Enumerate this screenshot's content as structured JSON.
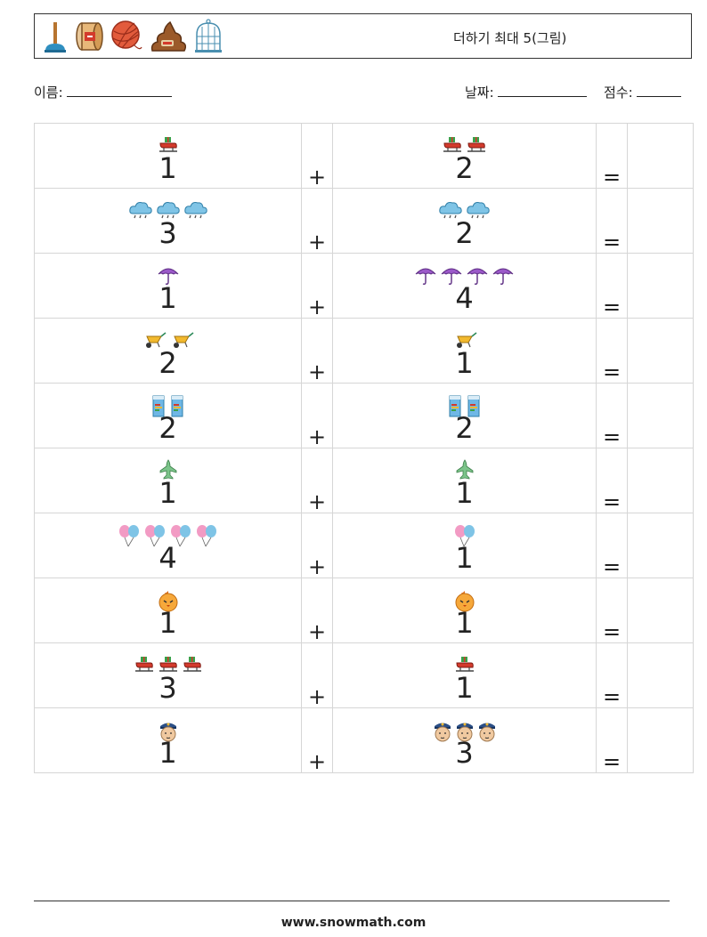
{
  "header": {
    "title": "더하기 최대 5(그림)",
    "icons": [
      "plunger-icon",
      "drum-icon",
      "yarn-ball-icon",
      "poop-icon",
      "birdcage-icon"
    ]
  },
  "meta": {
    "name_label": "이름:",
    "date_label": "날짜:",
    "score_label": "점수:"
  },
  "problems": [
    {
      "a": 1,
      "b": 2,
      "icon": "sleigh-icon",
      "plus": "+",
      "equals": "="
    },
    {
      "a": 3,
      "b": 2,
      "icon": "rain-cloud-icon",
      "plus": "+",
      "equals": "="
    },
    {
      "a": 1,
      "b": 4,
      "icon": "umbrella-icon",
      "plus": "+",
      "equals": "="
    },
    {
      "a": 2,
      "b": 1,
      "icon": "wheelbarrow-icon",
      "plus": "+",
      "equals": "="
    },
    {
      "a": 2,
      "b": 2,
      "icon": "milk-carton-icon",
      "plus": "+",
      "equals": "="
    },
    {
      "a": 1,
      "b": 1,
      "icon": "airplane-icon",
      "plus": "+",
      "equals": "="
    },
    {
      "a": 4,
      "b": 1,
      "icon": "balloons-icon",
      "plus": "+",
      "equals": "="
    },
    {
      "a": 1,
      "b": 1,
      "icon": "chick-icon",
      "plus": "+",
      "equals": "="
    },
    {
      "a": 3,
      "b": 1,
      "icon": "sleigh-icon",
      "plus": "+",
      "equals": "="
    },
    {
      "a": 1,
      "b": 3,
      "icon": "police-officer-icon",
      "plus": "+",
      "equals": "="
    }
  ],
  "footer": {
    "url": "www.snowmath.com"
  }
}
